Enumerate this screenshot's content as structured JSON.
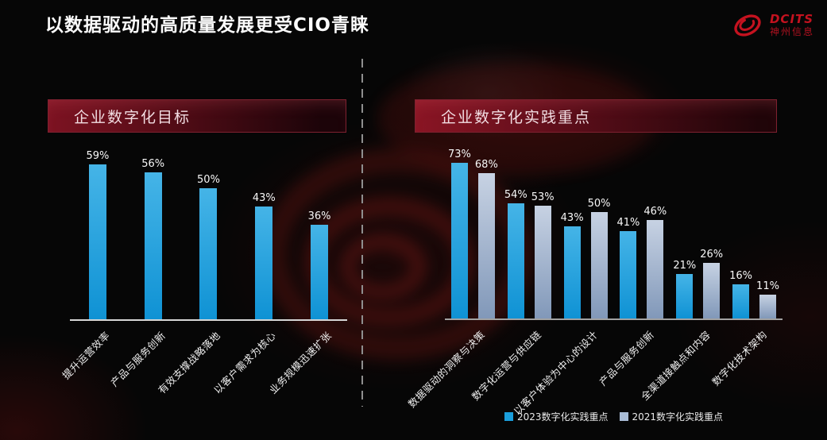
{
  "page": {
    "title": "以数据驱动的高质量发展更受CIO青睐"
  },
  "logo": {
    "brand": "DCITS",
    "company": "神州信息",
    "color": "#c4121f"
  },
  "colors": {
    "accent_red": "#7d1322",
    "bar_blue": "#1a9edb",
    "bar_gray_blue": "#a9bcd6",
    "axis_line_left": "#d6d6d6",
    "axis_line_right": "#a2a2a2"
  },
  "chart_data": [
    {
      "type": "bar",
      "title": "企业数字化目标",
      "categories": [
        "提升运营效率",
        "产品与服务创新",
        "有效支撑战略落地",
        "以客户需求为核心",
        "业务规模迅速扩张"
      ],
      "values": [
        59,
        56,
        50,
        43,
        36
      ],
      "unit": "%",
      "xlabel": "",
      "ylabel": "",
      "ylim": [
        0,
        65
      ],
      "grid": false,
      "legend": false,
      "bar_color": "#1a9edb",
      "bar_color_top": "#45b4e7",
      "bar_color_bottom": "#0f92d4"
    },
    {
      "type": "bar",
      "title": "企业数字化实践重点",
      "categories": [
        "数据驱动的洞察与决策",
        "数字化运营与供应链",
        "以客户体验为中心的设计",
        "产品与服务创新",
        "全渠道接触点和内容",
        "数字化技术架构"
      ],
      "series": [
        {
          "name": "2023数字化实践重点",
          "values": [
            73,
            54,
            43,
            41,
            21,
            16
          ],
          "color": "#1a9edb",
          "color_top": "#45b4e7",
          "color_bottom": "#0f92d4"
        },
        {
          "name": "2021数字化实践重点",
          "values": [
            68,
            53,
            50,
            46,
            26,
            11
          ],
          "color": "#a9bcd6",
          "color_top": "#c7d2e3",
          "color_bottom": "#8198b9"
        }
      ],
      "unit": "%",
      "xlabel": "",
      "ylabel": "",
      "ylim": [
        0,
        80
      ],
      "grid": false,
      "legend_position": "bottom"
    }
  ]
}
